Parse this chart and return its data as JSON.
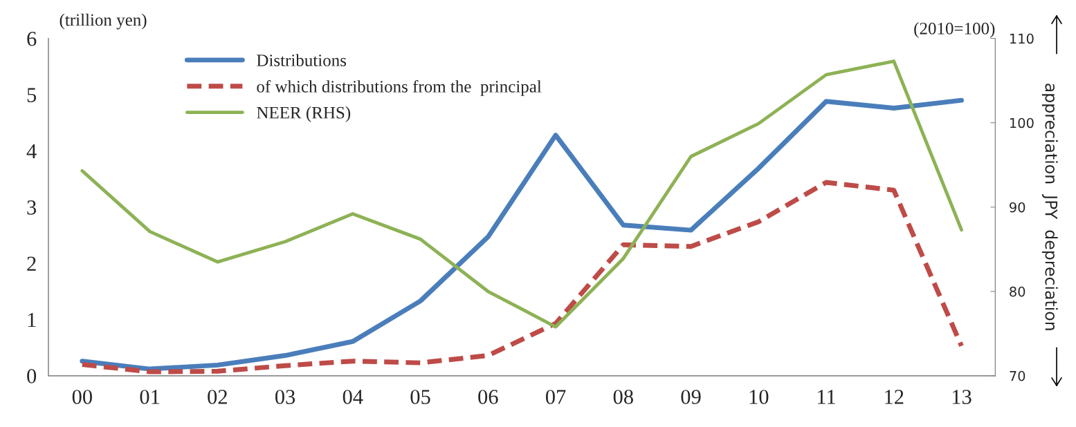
{
  "chart_data": {
    "type": "line",
    "categories": [
      "00",
      "01",
      "02",
      "03",
      "04",
      "05",
      "06",
      "07",
      "08",
      "09",
      "10",
      "11",
      "12",
      "13"
    ],
    "series": [
      {
        "name": "Distributions",
        "color": "#4a7ebb",
        "line_style": "solid",
        "values": [
          0.26,
          0.12,
          0.19,
          0.36,
          0.61,
          1.33,
          2.47,
          4.28,
          2.68,
          2.59,
          3.69,
          4.88,
          4.76,
          4.9
        ]
      },
      {
        "name": "of which distributions from the  principal",
        "color": "#be4b48",
        "line_style": "dashed",
        "values": [
          0.2,
          0.07,
          0.08,
          0.18,
          0.26,
          0.23,
          0.36,
          0.93,
          2.33,
          2.3,
          2.74,
          3.44,
          3.3,
          0.53
        ]
      },
      {
        "name": "NEER (RHS)",
        "color": "#8db255",
        "line_style": "solid",
        "axis": "y2",
        "values": [
          94.3,
          87.1,
          83.5,
          85.9,
          89.2,
          86.2,
          80.0,
          75.8,
          83.9,
          96.0,
          99.9,
          105.7,
          107.3,
          87.3
        ]
      }
    ],
    "ylim": [
      0,
      6
    ],
    "yticks": [
      0,
      1,
      2,
      3,
      4,
      5,
      6
    ],
    "y2lim": [
      70,
      110
    ],
    "y2ticks": [
      70,
      80,
      90,
      100,
      110
    ],
    "y2label": "appreciation  JPY  depreciation",
    "annotations": [
      "(trillion yen)",
      "(2010=100)"
    ],
    "grid": false,
    "legend": "top left",
    "marker": "none"
  }
}
